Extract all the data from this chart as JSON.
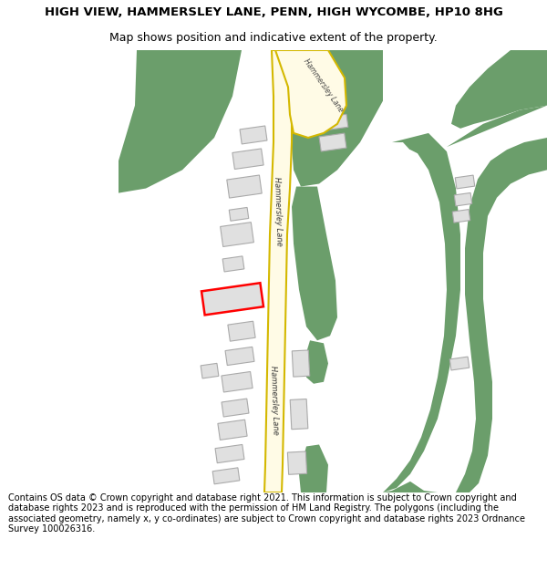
{
  "title_line1": "HIGH VIEW, HAMMERSLEY LANE, PENN, HIGH WYCOMBE, HP10 8HG",
  "title_line2": "Map shows position and indicative extent of the property.",
  "footer": "Contains OS data © Crown copyright and database right 2021. This information is subject to Crown copyright and database rights 2023 and is reproduced with the permission of HM Land Registry. The polygons (including the associated geometry, namely x, y co-ordinates) are subject to Crown copyright and database rights 2023 Ordnance Survey 100026316.",
  "bg_color": "#ffffff",
  "map_bg": "#ffffff",
  "green_color": "#6b9e6b",
  "road_fill": "#fffbe6",
  "road_border": "#d4b800",
  "building_color": "#e0e0e0",
  "building_border": "#aaaaaa",
  "highlight_color": "#ff0000",
  "title_fontsize": 9.5,
  "subtitle_fontsize": 9.0,
  "footer_fontsize": 7.0
}
